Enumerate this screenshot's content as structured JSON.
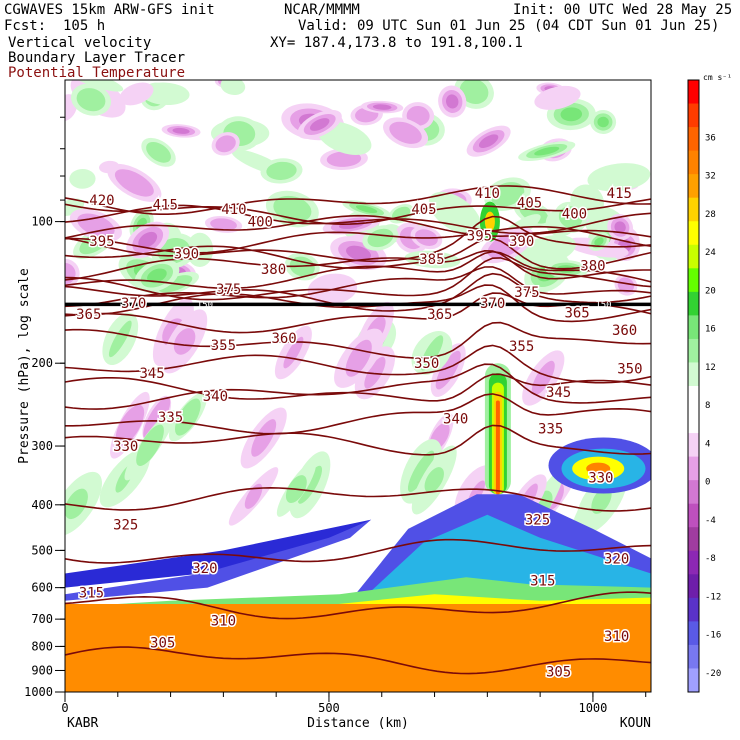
{
  "header": {
    "model": "CGWAVES 15km ARW-GFS init",
    "forecast": "Fcst:  105 h",
    "field1": "Vertical velocity",
    "field2": "Boundary Layer Tracer",
    "field3": "Potential Temperature",
    "source": "NCAR/MMMM",
    "init": "Init: 00 UTC Wed 28 May 25",
    "valid": "Valid: 09 UTC Sun 01 Jun 25 (04 CDT Sun 01 Jun 25)",
    "xy": "XY= 187.4,173.8 to 191.8,100.1"
  },
  "colors": {
    "theta_contour": "#7a0a0a",
    "tropopause_line": "#000000",
    "boundary_layer_tracer": "#ff8c00"
  },
  "chart_data": {
    "type": "heatmap",
    "title": "",
    "xlabel": "Distance (km)",
    "ylabel": "Pressure (hPa), log scale",
    "x_range": [
      0,
      1110
    ],
    "y_range_hpa": [
      1000,
      50
    ],
    "y_scale": "log",
    "x_ticks": [
      0,
      500,
      1000
    ],
    "y_ticks": [
      100,
      200,
      300,
      400,
      500,
      600,
      700,
      800,
      900,
      1000
    ],
    "x_endpoints": {
      "left": "KABR",
      "right": "KOUN"
    },
    "colorbar": {
      "unit": "cm s⁻¹",
      "labels": [
        36,
        32,
        28,
        24,
        20,
        16,
        12,
        8,
        4,
        0,
        -4,
        -8,
        -12,
        -16,
        -20
      ],
      "colors": [
        "#ff0000",
        "#ff3c00",
        "#ff6400",
        "#ff8200",
        "#ffa000",
        "#ffd200",
        "#ffff00",
        "#c8ff00",
        "#64ff00",
        "#32d232",
        "#78e678",
        "#a0f0a0",
        "#d2fad2",
        "#ffffff",
        "#ffffff",
        "#f5d2f5",
        "#e6a0e6",
        "#d278d2",
        "#be50be",
        "#a03ca0",
        "#8c28b4",
        "#6e1eaa",
        "#5a32c8",
        "#5a5ae6",
        "#7878f0",
        "#a0a0ff"
      ]
    },
    "theta_labels": [
      {
        "value": 420,
        "x": 70,
        "p": 90
      },
      {
        "value": 415,
        "x": 190,
        "p": 92
      },
      {
        "value": 410,
        "x": 320,
        "p": 94
      },
      {
        "value": 400,
        "x": 370,
        "p": 100
      },
      {
        "value": 405,
        "x": 680,
        "p": 94
      },
      {
        "value": 410,
        "x": 800,
        "p": 87
      },
      {
        "value": 405,
        "x": 880,
        "p": 91
      },
      {
        "value": 400,
        "x": 965,
        "p": 96
      },
      {
        "value": 415,
        "x": 1050,
        "p": 87
      },
      {
        "value": 395,
        "x": 70,
        "p": 110
      },
      {
        "value": 390,
        "x": 230,
        "p": 117
      },
      {
        "value": 395,
        "x": 785,
        "p": 107
      },
      {
        "value": 390,
        "x": 865,
        "p": 110
      },
      {
        "value": 385,
        "x": 695,
        "p": 120
      },
      {
        "value": 380,
        "x": 395,
        "p": 126
      },
      {
        "value": 380,
        "x": 1000,
        "p": 124
      },
      {
        "value": 375,
        "x": 310,
        "p": 139
      },
      {
        "value": 375,
        "x": 875,
        "p": 141
      },
      {
        "value": 370,
        "x": 130,
        "p": 149
      },
      {
        "value": 370,
        "x": 810,
        "p": 149
      },
      {
        "value": 365,
        "x": 45,
        "p": 157
      },
      {
        "value": 365,
        "x": 710,
        "p": 157
      },
      {
        "value": 365,
        "x": 970,
        "p": 156
      },
      {
        "value": 360,
        "x": 415,
        "p": 177
      },
      {
        "value": 360,
        "x": 1060,
        "p": 170
      },
      {
        "value": 355,
        "x": 300,
        "p": 183
      },
      {
        "value": 355,
        "x": 865,
        "p": 184
      },
      {
        "value": 350,
        "x": 685,
        "p": 200
      },
      {
        "value": 350,
        "x": 1070,
        "p": 205
      },
      {
        "value": 345,
        "x": 165,
        "p": 210
      },
      {
        "value": 345,
        "x": 935,
        "p": 230
      },
      {
        "value": 340,
        "x": 285,
        "p": 235
      },
      {
        "value": 340,
        "x": 740,
        "p": 262
      },
      {
        "value": 335,
        "x": 200,
        "p": 260
      },
      {
        "value": 335,
        "x": 920,
        "p": 275
      },
      {
        "value": 330,
        "x": 115,
        "p": 300
      },
      {
        "value": 330,
        "x": 1015,
        "p": 350
      },
      {
        "value": 325,
        "x": 115,
        "p": 440
      },
      {
        "value": 325,
        "x": 895,
        "p": 430
      },
      {
        "value": 320,
        "x": 265,
        "p": 545
      },
      {
        "value": 320,
        "x": 1045,
        "p": 520
      },
      {
        "value": 315,
        "x": 50,
        "p": 615
      },
      {
        "value": 315,
        "x": 905,
        "p": 580
      },
      {
        "value": 310,
        "x": 300,
        "p": 705
      },
      {
        "value": 310,
        "x": 1045,
        "p": 760
      },
      {
        "value": 305,
        "x": 185,
        "p": 785
      },
      {
        "value": 305,
        "x": 935,
        "p": 905
      }
    ],
    "annotations": [
      {
        "text": "150",
        "x": 265,
        "p": 150
      },
      {
        "text": "150",
        "x": 1020,
        "p": 150
      }
    ]
  }
}
